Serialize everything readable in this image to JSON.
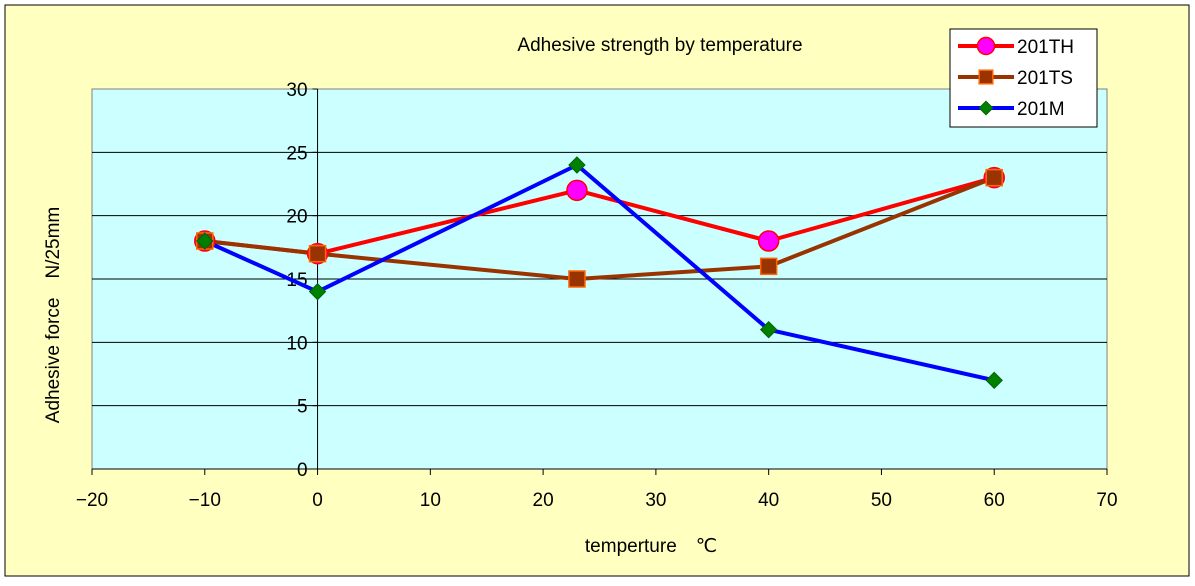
{
  "chart_data": {
    "type": "line",
    "title": "Adhesive strength by temperature",
    "xlabel": "temperture　℃",
    "ylabel": "Adhesive force　N/25mm",
    "xlim": [
      -20,
      70
    ],
    "ylim": [
      0,
      30
    ],
    "xticks": [
      -20,
      -10,
      0,
      10,
      20,
      30,
      40,
      50,
      60,
      70
    ],
    "yticks": [
      0,
      5,
      10,
      15,
      20,
      25,
      30
    ],
    "x_tick_labels": [
      "−20",
      "−10",
      "0",
      "10",
      "20",
      "30",
      "40",
      "50",
      "60",
      "70"
    ],
    "grid": {
      "horizontal": true,
      "vertical": false
    },
    "legend": {
      "placement": "top-right"
    },
    "colors": {
      "chart_area": "#ffffc0",
      "plot_area": "#ccffff",
      "legend_bg": "#ffffff"
    },
    "series": [
      {
        "name": "201TH",
        "color": "#ff0000",
        "marker": "circle",
        "marker_fill": "#ff00ff",
        "marker_stroke": "#ff0000",
        "x": [
          -10,
          0,
          23,
          40,
          60
        ],
        "y": [
          18,
          17,
          22,
          18,
          23
        ]
      },
      {
        "name": "201TS",
        "color": "#993300",
        "marker": "square",
        "marker_fill": "#993300",
        "marker_stroke": "#ff6600",
        "x": [
          -10,
          0,
          23,
          40,
          60
        ],
        "y": [
          18,
          17,
          15,
          16,
          23
        ]
      },
      {
        "name": "201M",
        "color": "#0000ff",
        "marker": "diamond",
        "marker_fill": "#008000",
        "marker_stroke": "#006400",
        "x": [
          -10,
          0,
          23,
          40,
          60
        ],
        "y": [
          18,
          14,
          24,
          11,
          7
        ]
      }
    ]
  }
}
